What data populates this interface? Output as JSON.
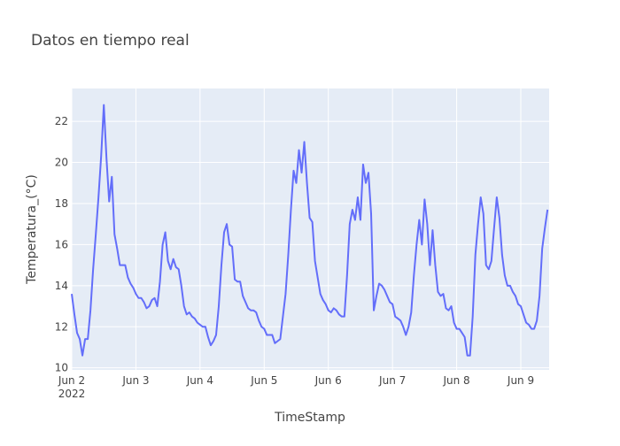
{
  "chart_data": {
    "type": "line",
    "title": "Datos en tiempo real",
    "xlabel": "TimeStamp",
    "ylabel": "Temperatura_(°C)",
    "color": "#636efa",
    "grid": true,
    "xlim": [
      "2022-06-02 00:00",
      "2022-06-09 10:36"
    ],
    "ylim": [
      9.9,
      23.6
    ],
    "yticks": [
      10,
      12,
      14,
      16,
      18,
      20,
      22
    ],
    "xticks": [
      {
        "value": "2022-06-02 00:00",
        "label": "Jun 2\n2022"
      },
      {
        "value": "2022-06-03 00:00",
        "label": "Jun 3"
      },
      {
        "value": "2022-06-04 00:00",
        "label": "Jun 4"
      },
      {
        "value": "2022-06-05 00:00",
        "label": "Jun 5"
      },
      {
        "value": "2022-06-06 00:00",
        "label": "Jun 6"
      },
      {
        "value": "2022-06-07 00:00",
        "label": "Jun 7"
      },
      {
        "value": "2022-06-08 00:00",
        "label": "Jun 8"
      },
      {
        "value": "2022-06-09 00:00",
        "label": "Jun 9"
      }
    ],
    "x": [
      "2022-06-02 00:00",
      "2022-06-02 01:00",
      "2022-06-02 02:00",
      "2022-06-02 03:00",
      "2022-06-02 04:00",
      "2022-06-02 05:00",
      "2022-06-02 06:00",
      "2022-06-02 07:00",
      "2022-06-02 08:00",
      "2022-06-02 09:00",
      "2022-06-02 10:00",
      "2022-06-02 11:00",
      "2022-06-02 12:00",
      "2022-06-02 13:00",
      "2022-06-02 14:00",
      "2022-06-02 15:00",
      "2022-06-02 16:00",
      "2022-06-02 17:00",
      "2022-06-02 18:00",
      "2022-06-02 19:00",
      "2022-06-02 20:00",
      "2022-06-02 21:00",
      "2022-06-02 22:00",
      "2022-06-02 23:00",
      "2022-06-03 00:00",
      "2022-06-03 01:00",
      "2022-06-03 02:00",
      "2022-06-03 03:00",
      "2022-06-03 04:00",
      "2022-06-03 05:00",
      "2022-06-03 06:00",
      "2022-06-03 07:00",
      "2022-06-03 08:00",
      "2022-06-03 09:00",
      "2022-06-03 10:00",
      "2022-06-03 11:00",
      "2022-06-03 12:00",
      "2022-06-03 13:00",
      "2022-06-03 14:00",
      "2022-06-03 15:00",
      "2022-06-03 16:00",
      "2022-06-03 17:00",
      "2022-06-03 18:00",
      "2022-06-03 19:00",
      "2022-06-03 20:00",
      "2022-06-03 21:00",
      "2022-06-03 22:00",
      "2022-06-03 23:00",
      "2022-06-04 00:00",
      "2022-06-04 01:00",
      "2022-06-04 02:00",
      "2022-06-04 03:00",
      "2022-06-04 04:00",
      "2022-06-04 05:00",
      "2022-06-04 06:00",
      "2022-06-04 07:00",
      "2022-06-04 08:00",
      "2022-06-04 09:00",
      "2022-06-04 10:00",
      "2022-06-04 11:00",
      "2022-06-04 12:00",
      "2022-06-04 13:00",
      "2022-06-04 14:00",
      "2022-06-04 15:00",
      "2022-06-04 16:00",
      "2022-06-04 17:00",
      "2022-06-04 18:00",
      "2022-06-04 19:00",
      "2022-06-04 20:00",
      "2022-06-04 21:00",
      "2022-06-04 22:00",
      "2022-06-04 23:00",
      "2022-06-05 00:00",
      "2022-06-05 01:00",
      "2022-06-05 02:00",
      "2022-06-05 03:00",
      "2022-06-05 04:00",
      "2022-06-05 05:00",
      "2022-06-05 06:00",
      "2022-06-05 07:00",
      "2022-06-05 08:00",
      "2022-06-05 09:00",
      "2022-06-05 10:00",
      "2022-06-05 11:00",
      "2022-06-05 12:00",
      "2022-06-05 13:00",
      "2022-06-05 14:00",
      "2022-06-05 15:00",
      "2022-06-05 16:00",
      "2022-06-05 17:00",
      "2022-06-05 18:00",
      "2022-06-05 19:00",
      "2022-06-05 20:00",
      "2022-06-05 21:00",
      "2022-06-05 22:00",
      "2022-06-05 23:00",
      "2022-06-06 00:00",
      "2022-06-06 01:00",
      "2022-06-06 02:00",
      "2022-06-06 03:00",
      "2022-06-06 04:00",
      "2022-06-06 05:00",
      "2022-06-06 06:00",
      "2022-06-06 07:00",
      "2022-06-06 08:00",
      "2022-06-06 09:00",
      "2022-06-06 10:00",
      "2022-06-06 11:00",
      "2022-06-06 12:00",
      "2022-06-06 13:00",
      "2022-06-06 14:00",
      "2022-06-06 15:00",
      "2022-06-06 16:00",
      "2022-06-06 17:00",
      "2022-06-06 18:00",
      "2022-06-06 19:00",
      "2022-06-06 20:00",
      "2022-06-06 21:00",
      "2022-06-06 22:00",
      "2022-06-06 23:00",
      "2022-06-07 00:00",
      "2022-06-07 01:00",
      "2022-06-07 02:00",
      "2022-06-07 03:00",
      "2022-06-07 04:00",
      "2022-06-07 05:00",
      "2022-06-07 06:00",
      "2022-06-07 07:00",
      "2022-06-07 08:00",
      "2022-06-07 09:00",
      "2022-06-07 10:00",
      "2022-06-07 11:00",
      "2022-06-07 12:00",
      "2022-06-07 13:00",
      "2022-06-07 14:00",
      "2022-06-07 15:00",
      "2022-06-07 16:00",
      "2022-06-07 17:00",
      "2022-06-07 18:00",
      "2022-06-07 19:00",
      "2022-06-07 20:00",
      "2022-06-07 21:00",
      "2022-06-07 22:00",
      "2022-06-07 23:00",
      "2022-06-08 00:00",
      "2022-06-08 01:00",
      "2022-06-08 02:00",
      "2022-06-08 03:00",
      "2022-06-08 04:00",
      "2022-06-08 05:00",
      "2022-06-08 06:00",
      "2022-06-08 07:00",
      "2022-06-08 08:00",
      "2022-06-08 09:00",
      "2022-06-08 10:00",
      "2022-06-08 11:00",
      "2022-06-08 12:00",
      "2022-06-08 13:00",
      "2022-06-08 14:00",
      "2022-06-08 15:00",
      "2022-06-08 16:00",
      "2022-06-08 17:00",
      "2022-06-08 18:00",
      "2022-06-08 19:00",
      "2022-06-08 20:00",
      "2022-06-08 21:00",
      "2022-06-08 22:00",
      "2022-06-08 23:00",
      "2022-06-09 00:00",
      "2022-06-09 01:00",
      "2022-06-09 02:00",
      "2022-06-09 03:00",
      "2022-06-09 04:00",
      "2022-06-09 05:00",
      "2022-06-09 06:00",
      "2022-06-09 07:00",
      "2022-06-09 08:00",
      "2022-06-09 09:00",
      "2022-06-09 10:00"
    ],
    "values": [
      13.6,
      12.6,
      11.7,
      11.4,
      10.6,
      11.4,
      11.4,
      12.8,
      14.8,
      16.5,
      18.3,
      20.3,
      22.8,
      20.2,
      18.1,
      19.3,
      16.5,
      15.8,
      15.0,
      15.0,
      15.0,
      14.4,
      14.1,
      13.9,
      13.6,
      13.4,
      13.4,
      13.2,
      12.9,
      13.0,
      13.3,
      13.4,
      13.0,
      14.2,
      16.0,
      16.6,
      15.2,
      14.8,
      15.3,
      14.9,
      14.8,
      14.0,
      13.0,
      12.6,
      12.7,
      12.5,
      12.4,
      12.2,
      12.1,
      12.0,
      12.0,
      11.5,
      11.1,
      11.3,
      11.6,
      13.0,
      15.0,
      16.6,
      17.0,
      16.0,
      15.9,
      14.3,
      14.2,
      14.2,
      13.5,
      13.2,
      12.9,
      12.8,
      12.8,
      12.7,
      12.3,
      12.0,
      11.9,
      11.6,
      11.6,
      11.6,
      11.2,
      11.3,
      11.4,
      12.5,
      13.6,
      15.5,
      17.7,
      19.6,
      19.0,
      20.6,
      19.5,
      21.0,
      19.0,
      17.3,
      17.1,
      15.2,
      14.4,
      13.6,
      13.3,
      13.1,
      12.8,
      12.7,
      12.9,
      12.8,
      12.6,
      12.5,
      12.5,
      14.5,
      17.0,
      17.7,
      17.2,
      18.3,
      17.2,
      19.9,
      19.0,
      19.5,
      17.5,
      12.8,
      13.5,
      14.1,
      14.0,
      13.8,
      13.5,
      13.2,
      13.1,
      12.5,
      12.4,
      12.3,
      12.0,
      11.6,
      12.0,
      12.7,
      14.5,
      16.0,
      17.2,
      16.0,
      18.2,
      17.0,
      15.0,
      16.7,
      15.0,
      13.7,
      13.5,
      13.6,
      12.9,
      12.8,
      13.0,
      12.2,
      11.9,
      11.9,
      11.7,
      11.5,
      10.6,
      10.6,
      12.5,
      15.5,
      17.0,
      18.3,
      17.5,
      15.0,
      14.8,
      15.2,
      16.8,
      18.3,
      17.3,
      15.5,
      14.5,
      14.0,
      14.0,
      13.7,
      13.5,
      13.1,
      13.0,
      12.6,
      12.2,
      12.1,
      11.9,
      11.9,
      12.3,
      13.5,
      15.8,
      16.8,
      17.7
    ]
  }
}
